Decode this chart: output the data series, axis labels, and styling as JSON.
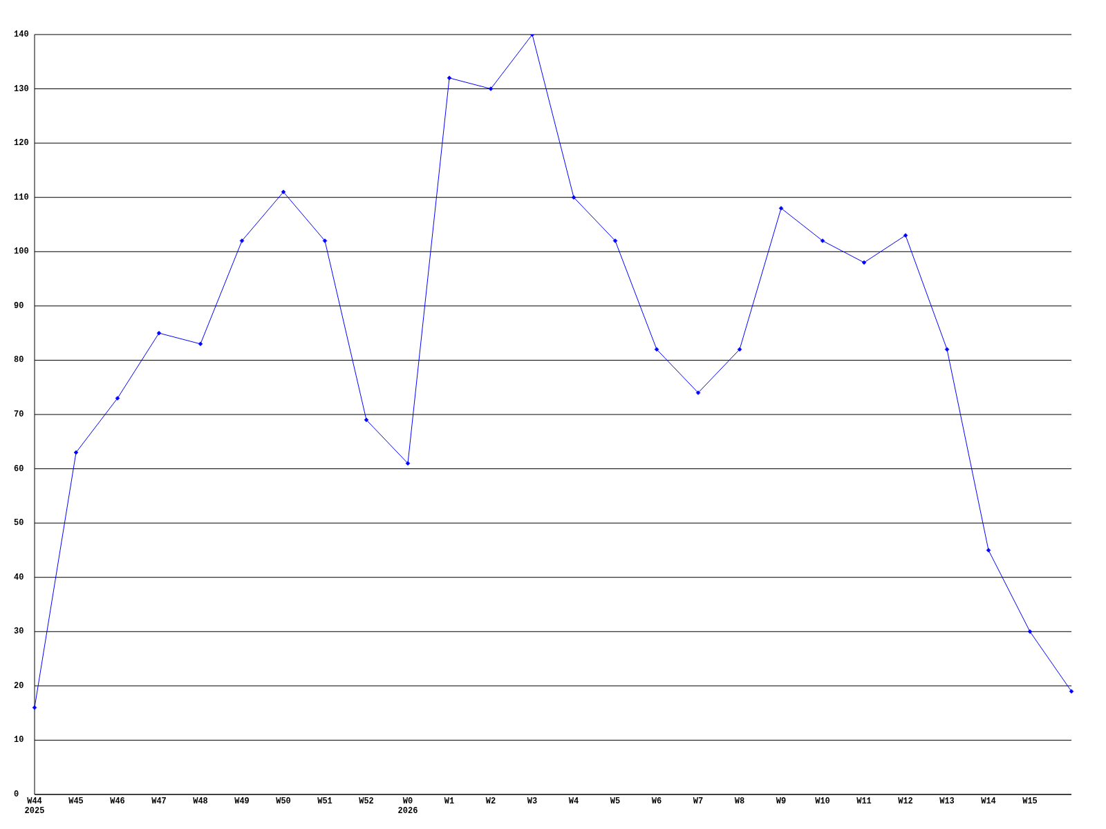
{
  "chart_data": {
    "type": "line",
    "categories": [
      "W44\n2025",
      "W45",
      "W46",
      "W47",
      "W48",
      "W49",
      "W50",
      "W51",
      "W52",
      "W0\n2026",
      "W1",
      "W2",
      "W3",
      "W4",
      "W5",
      "W6",
      "W7",
      "W8",
      "W9",
      "W10",
      "W11",
      "W12",
      "W13",
      "W14",
      "W15",
      null
    ],
    "series": [
      {
        "color": "#0000ff",
        "values": [
          16,
          63,
          73,
          85,
          83,
          102,
          111,
          102,
          69,
          61,
          132,
          130,
          140,
          110,
          102,
          82,
          74,
          82,
          108,
          102,
          98,
          103,
          82,
          45,
          30,
          19
        ]
      }
    ],
    "ylim": [
      0,
      140
    ],
    "yticks": [
      0,
      10,
      20,
      30,
      40,
      50,
      60,
      70,
      80,
      90,
      100,
      110,
      120,
      130,
      140
    ],
    "grid": "y",
    "marker": "diamond",
    "line_style": "solid"
  }
}
